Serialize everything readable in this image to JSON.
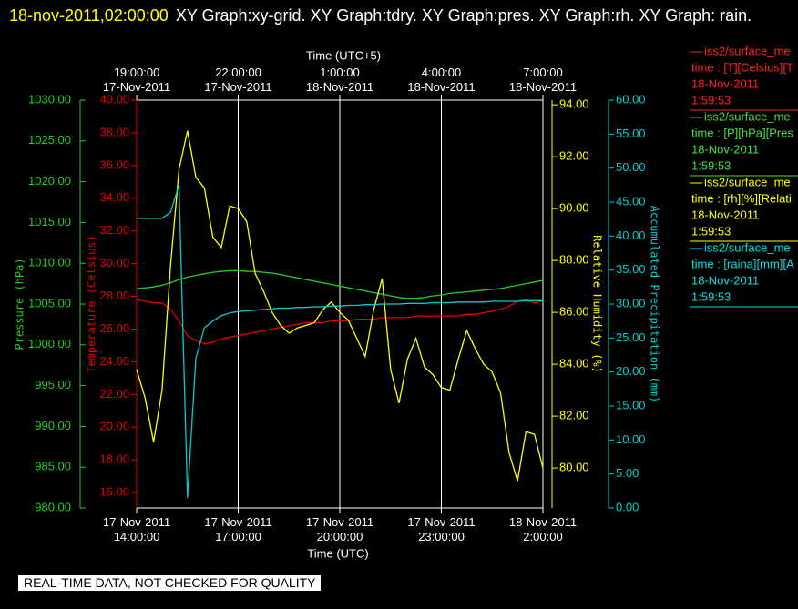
{
  "chart_data": {
    "type": "line",
    "title_time": "18-nov-2011,02:00:00",
    "title": "XY Graph:xy-grid.  XY Graph:tdry.  XY Graph:pres.  XY Graph:rh.  XY Graph: rain.",
    "footer": "REAL-TIME DATA, NOT CHECKED FOR QUALITY",
    "x_label": "Time (UTC)",
    "x2_label": "Time (UTC+5)",
    "grid": "x",
    "xlim": [
      "2011-11-17T14:00:00",
      "2011-11-18T02:00:00"
    ],
    "xticks": [
      {
        "value": "2011-11-17T14:00:00",
        "label": "17-Nov-2011\n14:00:00"
      },
      {
        "value": "2011-11-17T17:00:00",
        "label": "17-Nov-2011\n17:00:00"
      },
      {
        "value": "2011-11-17T20:00:00",
        "label": "17-Nov-2011\n20:00:00"
      },
      {
        "value": "2011-11-17T23:00:00",
        "label": "17-Nov-2011\n23:00:00"
      },
      {
        "value": "2011-11-18T02:00:00",
        "label": "18-Nov-2011\n2:00:00"
      }
    ],
    "x2lim": [
      "2011-11-17T19:00:00",
      "2011-11-18T07:00:00"
    ],
    "x2ticks": [
      {
        "value": "2011-11-17T19:00:00",
        "label": "19:00:00\n17-Nov-2011"
      },
      {
        "value": "2011-11-17T22:00:00",
        "label": "22:00:00\n17-Nov-2011"
      },
      {
        "value": "2011-11-18T01:00:00",
        "label": "1:00:00\n18-Nov-2011"
      },
      {
        "value": "2011-11-18T04:00:00",
        "label": "4:00:00\n18-Nov-2011"
      },
      {
        "value": "2011-11-18T07:00:00",
        "label": "7:00:00\n18-Nov-2011"
      }
    ],
    "x": [
      "2011-11-17T14:00:00",
      "2011-11-17T14:15:00",
      "2011-11-17T14:30:00",
      "2011-11-17T14:45:00",
      "2011-11-17T15:00:00",
      "2011-11-17T15:15:00",
      "2011-11-17T15:30:00",
      "2011-11-17T15:45:00",
      "2011-11-17T16:00:00",
      "2011-11-17T16:15:00",
      "2011-11-17T16:30:00",
      "2011-11-17T16:45:00",
      "2011-11-17T17:00:00",
      "2011-11-17T17:15:00",
      "2011-11-17T17:30:00",
      "2011-11-17T17:45:00",
      "2011-11-17T18:00:00",
      "2011-11-17T18:15:00",
      "2011-11-17T18:30:00",
      "2011-11-17T18:45:00",
      "2011-11-17T19:00:00",
      "2011-11-17T19:15:00",
      "2011-11-17T19:30:00",
      "2011-11-17T19:45:00",
      "2011-11-17T20:00:00",
      "2011-11-17T20:15:00",
      "2011-11-17T20:30:00",
      "2011-11-17T20:45:00",
      "2011-11-17T21:00:00",
      "2011-11-17T21:15:00",
      "2011-11-17T21:30:00",
      "2011-11-17T21:45:00",
      "2011-11-17T22:00:00",
      "2011-11-17T22:15:00",
      "2011-11-17T22:30:00",
      "2011-11-17T22:45:00",
      "2011-11-17T23:00:00",
      "2011-11-17T23:15:00",
      "2011-11-17T23:30:00",
      "2011-11-17T23:45:00",
      "2011-11-18T00:00:00",
      "2011-11-18T00:15:00",
      "2011-11-18T00:30:00",
      "2011-11-18T00:45:00",
      "2011-11-18T01:00:00",
      "2011-11-18T01:15:00",
      "2011-11-18T01:30:00",
      "2011-11-18T01:45:00",
      "2011-11-18T02:00:00"
    ],
    "series": [
      {
        "name": "iss2/surface_me",
        "color": "#e00000",
        "legend_color": "#ff2020",
        "legend_lines": [
          "time : [T][Celsius][T",
          "18-Nov-2011",
          "1:59:53"
        ],
        "axis_label": "Temperature (Celsius)",
        "ylim": [
          15.06,
          40
        ],
        "yticks": [
          {
            "value": 16,
            "label": "16.00"
          },
          {
            "value": 18,
            "label": "18.00"
          },
          {
            "value": 20,
            "label": "20.00"
          },
          {
            "value": 22,
            "label": "22.00"
          },
          {
            "value": 24,
            "label": "24.00"
          },
          {
            "value": 26,
            "label": "26.00"
          },
          {
            "value": 28,
            "label": "28.00"
          },
          {
            "value": 30,
            "label": "30.00"
          },
          {
            "value": 32,
            "label": "32.00"
          },
          {
            "value": 34,
            "label": "34.00"
          },
          {
            "value": 36,
            "label": "36.00"
          },
          {
            "value": 38,
            "label": "38.00"
          },
          {
            "value": 40,
            "label": "40.00"
          }
        ],
        "values": [
          27.8,
          27.7,
          27.6,
          27.6,
          27.2,
          26.5,
          25.6,
          25.3,
          25.1,
          25.2,
          25.4,
          25.5,
          25.6,
          25.7,
          25.8,
          25.9,
          26.0,
          26.1,
          26.2,
          26.3,
          26.4,
          26.4,
          26.4,
          26.5,
          26.5,
          26.5,
          26.6,
          26.6,
          26.6,
          26.7,
          26.7,
          26.7,
          26.7,
          26.8,
          26.8,
          26.8,
          26.8,
          26.8,
          26.8,
          26.9,
          26.9,
          27.0,
          27.1,
          27.2,
          27.4,
          27.7,
          27.8,
          27.6,
          27.7
        ]
      },
      {
        "name": "iss2/surface_me",
        "color": "#22cc22",
        "legend_color": "#40e040",
        "legend_lines": [
          "time : [P][hPa][Pres",
          "18-Nov-2011",
          "1:59:53"
        ],
        "axis_label": "Pressure (hPa)",
        "ylim": [
          980,
          1030
        ],
        "yticks": [
          {
            "value": 980,
            "label": "980.00"
          },
          {
            "value": 985,
            "label": "985.00"
          },
          {
            "value": 990,
            "label": "990.00"
          },
          {
            "value": 995,
            "label": "995.00"
          },
          {
            "value": 1000,
            "label": "1000.00"
          },
          {
            "value": 1005,
            "label": "1005.00"
          },
          {
            "value": 1010,
            "label": "1010.00"
          },
          {
            "value": 1015,
            "label": "1015.00"
          },
          {
            "value": 1020,
            "label": "1020.00"
          },
          {
            "value": 1025,
            "label": "1025.00"
          },
          {
            "value": 1030,
            "label": "1030.00"
          }
        ],
        "values": [
          1006.9,
          1007.0,
          1007.1,
          1007.3,
          1007.6,
          1008.0,
          1008.3,
          1008.5,
          1008.7,
          1008.9,
          1009.0,
          1009.1,
          1009.1,
          1009.0,
          1009.0,
          1008.9,
          1008.8,
          1008.6,
          1008.4,
          1008.2,
          1008.0,
          1007.8,
          1007.6,
          1007.4,
          1007.2,
          1007.0,
          1006.8,
          1006.6,
          1006.4,
          1006.2,
          1006.0,
          1005.8,
          1005.7,
          1005.7,
          1005.8,
          1006.0,
          1006.1,
          1006.3,
          1006.4,
          1006.5,
          1006.6,
          1006.7,
          1006.8,
          1006.9,
          1007.1,
          1007.3,
          1007.5,
          1007.7,
          1007.9
        ]
      },
      {
        "name": "iss2/surface_me",
        "color": "#ffff00",
        "legend_color": "#ffff00",
        "legend_lines": [
          "time : [rh][%][Relati",
          "18-Nov-2011",
          "1:59:53"
        ],
        "axis_label": "Relative Humidity (%)",
        "ylim": [
          78.46,
          94.18
        ],
        "yticks": [
          {
            "value": 80,
            "label": "80.00"
          },
          {
            "value": 82,
            "label": "82.00"
          },
          {
            "value": 84,
            "label": "84.00"
          },
          {
            "value": 86,
            "label": "86.00"
          },
          {
            "value": 88,
            "label": "88.00"
          },
          {
            "value": 90,
            "label": "90.00"
          },
          {
            "value": 92,
            "label": "92.00"
          },
          {
            "value": 94,
            "label": "94.00"
          }
        ],
        "values": [
          83.8,
          82.7,
          81.0,
          83.0,
          87.8,
          91.5,
          93.0,
          91.2,
          90.8,
          88.9,
          88.5,
          90.1,
          90.0,
          89.5,
          87.5,
          86.8,
          86.0,
          85.5,
          85.2,
          85.4,
          85.5,
          85.6,
          86.1,
          86.4,
          86.0,
          85.7,
          85.0,
          84.3,
          86.1,
          87.3,
          83.8,
          82.5,
          84.2,
          85.0,
          83.9,
          83.6,
          83.1,
          83.0,
          84.2,
          85.3,
          84.6,
          84.0,
          83.7,
          82.9,
          80.6,
          79.5,
          81.4,
          81.3,
          80.0
        ]
      },
      {
        "name": "iss2/surface_me",
        "color": "#00cccc",
        "legend_color": "#00e0e0",
        "legend_lines": [
          "time : [raina][mm][A",
          "18-Nov-2011",
          "1:59:53"
        ],
        "axis_label": "Accumulated Precipitation (mm)",
        "ylim": [
          0,
          60
        ],
        "yticks": [
          {
            "value": 0,
            "label": "0.00"
          },
          {
            "value": 5,
            "label": "5.00"
          },
          {
            "value": 10,
            "label": "10.00"
          },
          {
            "value": 15,
            "label": "15.00"
          },
          {
            "value": 20,
            "label": "20.00"
          },
          {
            "value": 25,
            "label": "25.00"
          },
          {
            "value": 30,
            "label": "30.00"
          },
          {
            "value": 35,
            "label": "35.00"
          },
          {
            "value": 40,
            "label": "40.00"
          },
          {
            "value": 45,
            "label": "45.00"
          },
          {
            "value": 50,
            "label": "50.00"
          },
          {
            "value": 55,
            "label": "55.00"
          },
          {
            "value": 60,
            "label": "60.00"
          }
        ],
        "values": [
          42.6,
          42.6,
          42.6,
          42.6,
          43.5,
          47.5,
          1.5,
          22.0,
          26.5,
          27.5,
          28.3,
          28.7,
          28.9,
          29.0,
          29.1,
          29.2,
          29.3,
          29.4,
          29.4,
          29.5,
          29.5,
          29.6,
          29.6,
          29.7,
          29.7,
          29.8,
          29.8,
          29.9,
          29.9,
          30.0,
          30.0,
          30.0,
          30.1,
          30.1,
          30.1,
          30.2,
          30.2,
          30.2,
          30.3,
          30.3,
          30.3,
          30.3,
          30.4,
          30.4,
          30.4,
          30.4,
          30.5,
          30.5,
          30.5
        ]
      }
    ]
  }
}
